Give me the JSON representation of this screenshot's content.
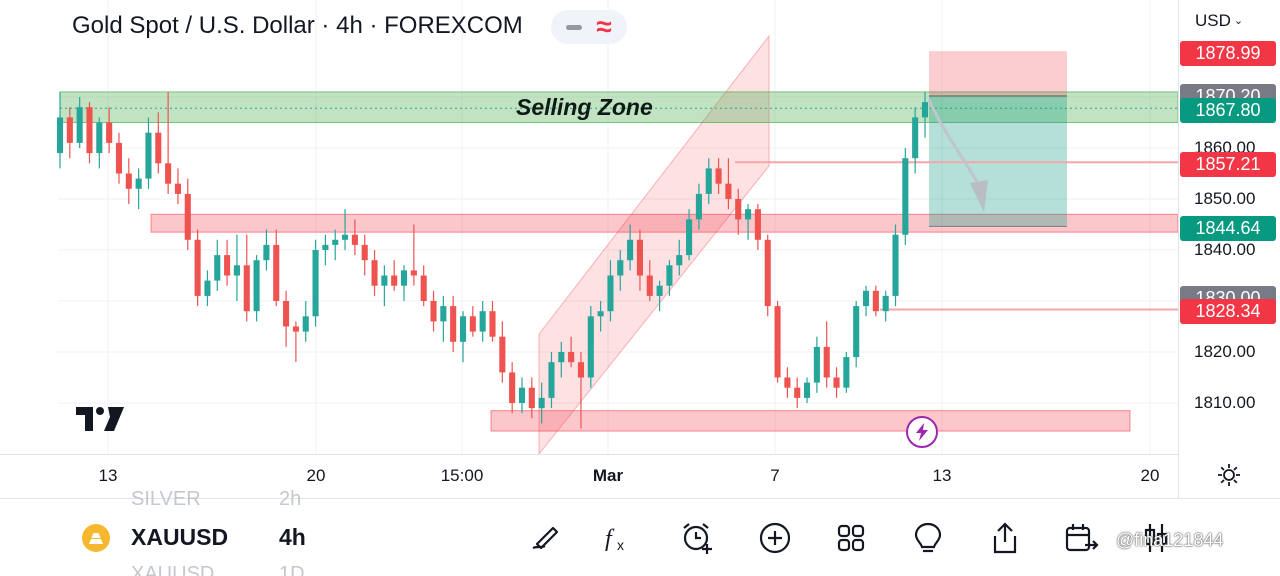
{
  "header": {
    "title": "Gold Spot / U.S. Dollar · 4h · FOREXCOM",
    "wave_glyph": "≈",
    "currency": "USD",
    "currency_chevron": "⌄"
  },
  "colors": {
    "bull": "#26a69a",
    "bear": "#ef5350",
    "zone_red": "rgba(242,54,69,0.28)",
    "zone_green": "rgba(76,175,80,0.35)",
    "tag_red": "#f23645",
    "tag_teal": "#089981",
    "tag_gray": "#787b86"
  },
  "chart_data": {
    "type": "candlestick",
    "symbol": "XAUUSD",
    "timeframe": "4h",
    "y_ticks": [
      "1860.00",
      "1850.00",
      "1840.00",
      "1820.00",
      "1810.00"
    ],
    "x_ticks": [
      {
        "label": "13",
        "bold": false
      },
      {
        "label": "20",
        "bold": false
      },
      {
        "label": "15:00",
        "bold": false
      },
      {
        "label": "Mar",
        "bold": true
      },
      {
        "label": "7",
        "bold": false
      },
      {
        "label": "13",
        "bold": false
      },
      {
        "label": "20",
        "bold": false
      }
    ],
    "price_tags": [
      {
        "value": "1878.99",
        "color": "tag_red"
      },
      {
        "value": "1870.20",
        "color": "tag_gray"
      },
      {
        "value": "1867.80",
        "color": "tag_teal"
      },
      {
        "value": "1857.21",
        "color": "tag_red"
      },
      {
        "value": "1844.64",
        "color": "tag_teal"
      },
      {
        "value": "1830.00",
        "color": "tag_gray"
      },
      {
        "value": "1828.34",
        "color": "tag_red"
      }
    ],
    "annotations": {
      "selling_zone_label": "Selling Zone",
      "selling_zone": [
        1865,
        1871
      ],
      "support_zone_mid": [
        1843.5,
        1847
      ],
      "support_zone_low": [
        1804.5,
        1808.5
      ],
      "short_position": {
        "entry": 1870.2,
        "stop": 1878.99,
        "target": 1844.64
      },
      "horizontal_lines": [
        1857.21,
        1828.34
      ]
    },
    "candles": [
      [
        1859,
        1871,
        1856,
        1866
      ],
      [
        1866,
        1868,
        1858,
        1861
      ],
      [
        1861,
        1870,
        1860,
        1868
      ],
      [
        1868,
        1869,
        1857,
        1859
      ],
      [
        1859,
        1866,
        1856,
        1865
      ],
      [
        1865,
        1868,
        1859,
        1861
      ],
      [
        1861,
        1863,
        1853,
        1855
      ],
      [
        1855,
        1858,
        1849,
        1852
      ],
      [
        1852,
        1856,
        1848,
        1854
      ],
      [
        1854,
        1866,
        1852,
        1863
      ],
      [
        1863,
        1867,
        1855,
        1857
      ],
      [
        1857,
        1871,
        1851,
        1853
      ],
      [
        1853,
        1856,
        1849,
        1851
      ],
      [
        1851,
        1854,
        1840,
        1842
      ],
      [
        1842,
        1844,
        1829,
        1831
      ],
      [
        1831,
        1836,
        1829,
        1834
      ],
      [
        1834,
        1842,
        1832,
        1839
      ],
      [
        1839,
        1842,
        1833,
        1835
      ],
      [
        1835,
        1843,
        1830,
        1837
      ],
      [
        1837,
        1843,
        1826,
        1828
      ],
      [
        1828,
        1839,
        1826,
        1838
      ],
      [
        1838,
        1844,
        1836,
        1841
      ],
      [
        1841,
        1844,
        1829,
        1830
      ],
      [
        1830,
        1832,
        1821,
        1825
      ],
      [
        1825,
        1826,
        1818,
        1824
      ],
      [
        1824,
        1830,
        1822,
        1827
      ],
      [
        1827,
        1842,
        1825,
        1840
      ],
      [
        1840,
        1843,
        1837,
        1841
      ],
      [
        1841,
        1844,
        1838,
        1842
      ],
      [
        1842,
        1848,
        1840,
        1843
      ],
      [
        1843,
        1846,
        1839,
        1841
      ],
      [
        1841,
        1843,
        1835,
        1838
      ],
      [
        1838,
        1840,
        1831,
        1833
      ],
      [
        1833,
        1837,
        1829,
        1835
      ],
      [
        1835,
        1838,
        1832,
        1833
      ],
      [
        1833,
        1837,
        1830,
        1836
      ],
      [
        1836,
        1845,
        1833,
        1835
      ],
      [
        1835,
        1837,
        1829,
        1830
      ],
      [
        1830,
        1832,
        1824,
        1826
      ],
      [
        1826,
        1831,
        1822,
        1829
      ],
      [
        1829,
        1831,
        1820,
        1822
      ],
      [
        1822,
        1828,
        1818,
        1827
      ],
      [
        1827,
        1829,
        1823,
        1824
      ],
      [
        1824,
        1830,
        1822,
        1828
      ],
      [
        1828,
        1830,
        1822,
        1823
      ],
      [
        1823,
        1826,
        1814,
        1816
      ],
      [
        1816,
        1818,
        1808,
        1810
      ],
      [
        1810,
        1815,
        1808,
        1813
      ],
      [
        1813,
        1815,
        1807,
        1809
      ],
      [
        1809,
        1814,
        1806,
        1811
      ],
      [
        1811,
        1820,
        1809,
        1818
      ],
      [
        1818,
        1822,
        1815,
        1820
      ],
      [
        1820,
        1823,
        1817,
        1818
      ],
      [
        1818,
        1820,
        1805,
        1815
      ],
      [
        1815,
        1829,
        1813,
        1827
      ],
      [
        1827,
        1830,
        1824,
        1828
      ],
      [
        1828,
        1838,
        1826,
        1835
      ],
      [
        1835,
        1840,
        1832,
        1838
      ],
      [
        1838,
        1845,
        1836,
        1842
      ],
      [
        1842,
        1844,
        1832,
        1835
      ],
      [
        1835,
        1838,
        1830,
        1831
      ],
      [
        1831,
        1834,
        1828,
        1833
      ],
      [
        1833,
        1838,
        1831,
        1837
      ],
      [
        1837,
        1842,
        1835,
        1839
      ],
      [
        1839,
        1848,
        1838,
        1846
      ],
      [
        1846,
        1853,
        1844,
        1851
      ],
      [
        1851,
        1858,
        1849,
        1856
      ],
      [
        1856,
        1858,
        1851,
        1853
      ],
      [
        1853,
        1858,
        1848,
        1850
      ],
      [
        1850,
        1852,
        1843,
        1846
      ],
      [
        1846,
        1849,
        1842,
        1848
      ],
      [
        1848,
        1849,
        1840,
        1842
      ],
      [
        1842,
        1843,
        1827,
        1829
      ],
      [
        1829,
        1830,
        1814,
        1815
      ],
      [
        1815,
        1817,
        1811,
        1813
      ],
      [
        1813,
        1815,
        1809,
        1811
      ],
      [
        1811,
        1815,
        1810,
        1814
      ],
      [
        1814,
        1823,
        1812,
        1821
      ],
      [
        1821,
        1826,
        1813,
        1815
      ],
      [
        1815,
        1817,
        1811,
        1813
      ],
      [
        1813,
        1820,
        1812,
        1819
      ],
      [
        1819,
        1830,
        1817,
        1829
      ],
      [
        1829,
        1833,
        1827,
        1832
      ],
      [
        1832,
        1833,
        1827,
        1828
      ],
      [
        1828,
        1832,
        1826,
        1831
      ],
      [
        1831,
        1845,
        1829,
        1843
      ],
      [
        1843,
        1860,
        1841,
        1858
      ],
      [
        1858,
        1868,
        1855,
        1866
      ],
      [
        1866,
        1871,
        1862,
        1869
      ]
    ]
  },
  "bottom": {
    "ghost_above": "SILVER",
    "ghost_above_tf": "2h",
    "symbol": "XAUUSD",
    "timeframe": "4h",
    "ghost_below": "XAUUSD",
    "ghost_below_tf": "1D",
    "tools": [
      "draw-icon",
      "fx-indicator-icon",
      "alarm-add-icon",
      "add-circle-icon",
      "grid-icon",
      "bulb-icon",
      "share-icon",
      "calendar-replay-icon",
      "candles-settings-icon"
    ],
    "watermark": "@fina121844"
  }
}
